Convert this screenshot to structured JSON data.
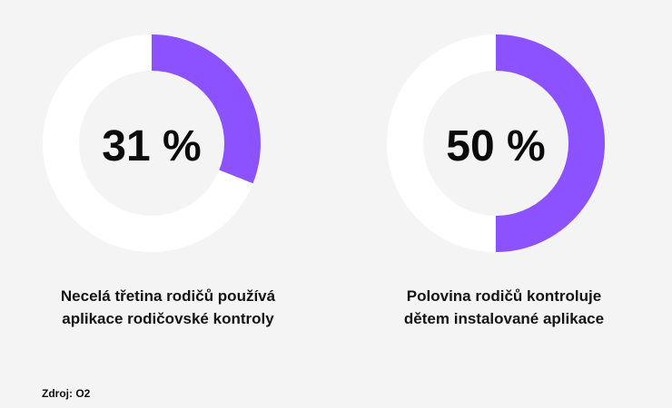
{
  "chart_data": [
    {
      "type": "pie",
      "values": [
        31,
        69
      ],
      "value": 31,
      "label": "31 %",
      "caption_lines": [
        "Necelá třetina rodičů používá",
        "aplikace rodičovské kontroly"
      ],
      "colors": {
        "filled": "#8c52ff",
        "remainder": "#ffffff"
      }
    },
    {
      "type": "pie",
      "values": [
        50,
        50
      ],
      "value": 50,
      "label": "50 %",
      "caption_lines": [
        "Polovina rodičů kontroluje",
        "dětem instalované aplikace"
      ],
      "colors": {
        "filled": "#8c52ff",
        "remainder": "#ffffff"
      }
    }
  ],
  "source": "Zdroj: O2"
}
